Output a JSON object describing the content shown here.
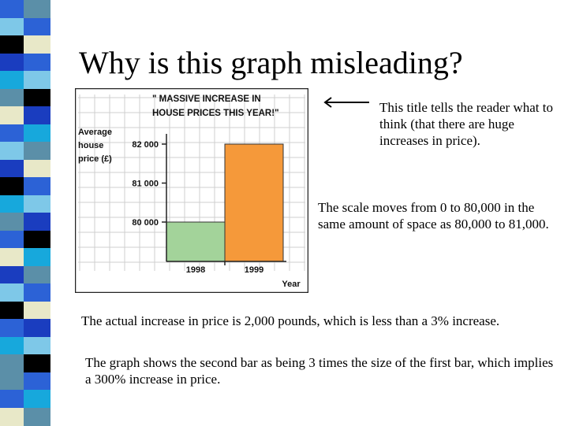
{
  "slide": {
    "title": "Why is this graph misleading?",
    "notes": [
      "This title tells the reader what to think (that there are huge increases in price).",
      "The scale moves from 0 to 80,000 in the same amount of space as 80,000 to 81,000.",
      "The actual increase in price is 2,000 pounds, which is less than a 3% increase.",
      "The graph shows the second bar as being 3 times the size of the first bar, which implies a 300% increase in price."
    ],
    "stripe_colors": [
      "#5b8fa8",
      "#2c62d6",
      "#000000",
      "#e8e8c8",
      "#7ec8e8",
      "#1a3dbf",
      "#17a8dc"
    ]
  },
  "chart_data": {
    "type": "bar",
    "title_lines": [
      "\" MASSIVE INCREASE  IN",
      "HOUSE PRICES THIS YEAR!\""
    ],
    "ylabel_lines": [
      "Average",
      "house",
      "price (£)"
    ],
    "xlabel": "Year",
    "categories": [
      "1998",
      "1999"
    ],
    "values": [
      80000,
      82000
    ],
    "bar_colors": [
      "#a3d39a",
      "#f5993a"
    ],
    "yticks": [
      {
        "value": 80000,
        "label": "80 000"
      },
      {
        "value": 81000,
        "label": "81 000"
      },
      {
        "value": 82000,
        "label": "82 000"
      }
    ],
    "grid": true
  }
}
